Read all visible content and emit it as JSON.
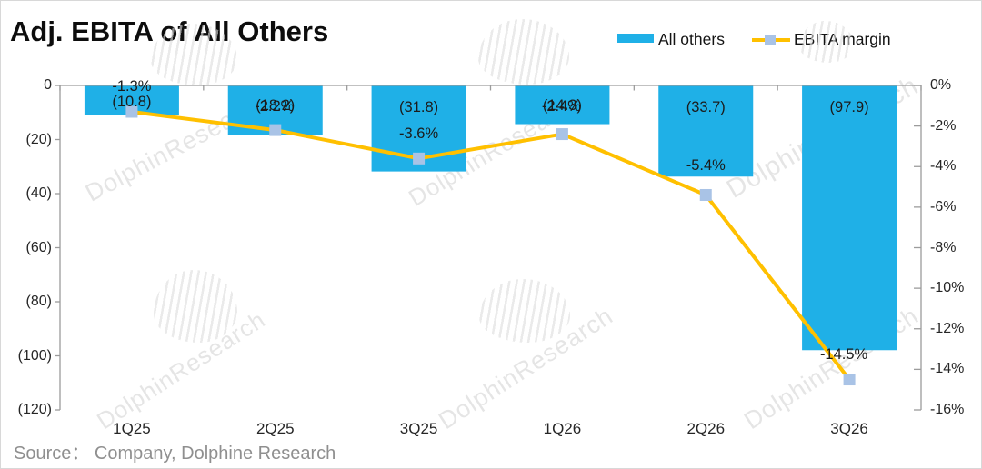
{
  "header": {
    "title": "Adj. EBITA of All Others"
  },
  "legend": [
    {
      "label": "All others",
      "swatch": "bar",
      "color": "#1FB0E7"
    },
    {
      "label": "EBITA margin",
      "swatch": "line-marker",
      "line_color": "#FFC000",
      "marker_color": "#A9C3E6"
    }
  ],
  "watermark": {
    "text": "DolphinResearch"
  },
  "source": {
    "text": "Source：  Company, Dolphine Research"
  },
  "chart_data": {
    "type": "bar+line",
    "categories": [
      "1Q25",
      "2Q25",
      "3Q25",
      "1Q26",
      "2Q26",
      "3Q26"
    ],
    "series": [
      {
        "name": "All others",
        "type": "bar",
        "axis": "left",
        "color": "#1FB0E7",
        "values": [
          -10.8,
          -18.2,
          -31.8,
          -14.3,
          -33.7,
          -97.9
        ],
        "data_labels": [
          "(10.8)",
          "(18.2)",
          "(31.8)",
          "(14.3)",
          "(33.7)",
          "(97.9)"
        ]
      },
      {
        "name": "EBITA margin",
        "type": "line",
        "axis": "right",
        "color": "#FFC000",
        "marker": "square",
        "marker_color": "#A9C3E6",
        "values": [
          -1.3,
          -2.2,
          -3.6,
          -2.4,
          -5.4,
          -14.5
        ],
        "data_labels": [
          "-1.3%",
          "-2.2%",
          "-3.6%",
          "-2.4%",
          "-5.4%",
          "-14.5%"
        ]
      }
    ],
    "left_axis": {
      "max": 0,
      "min": -120,
      "tick_labels": [
        "0",
        "(20)",
        "(40)",
        "(60)",
        "(80)",
        "(100)",
        "(120)"
      ]
    },
    "right_axis": {
      "max": 0,
      "min": -16,
      "tick_labels": [
        "0%",
        "-2%",
        "-4%",
        "-6%",
        "-8%",
        "-10%",
        "-12%",
        "-14%",
        "-16%"
      ]
    },
    "grid": false,
    "legend_position": "top-right",
    "axis_color": "#9c9c9c"
  }
}
